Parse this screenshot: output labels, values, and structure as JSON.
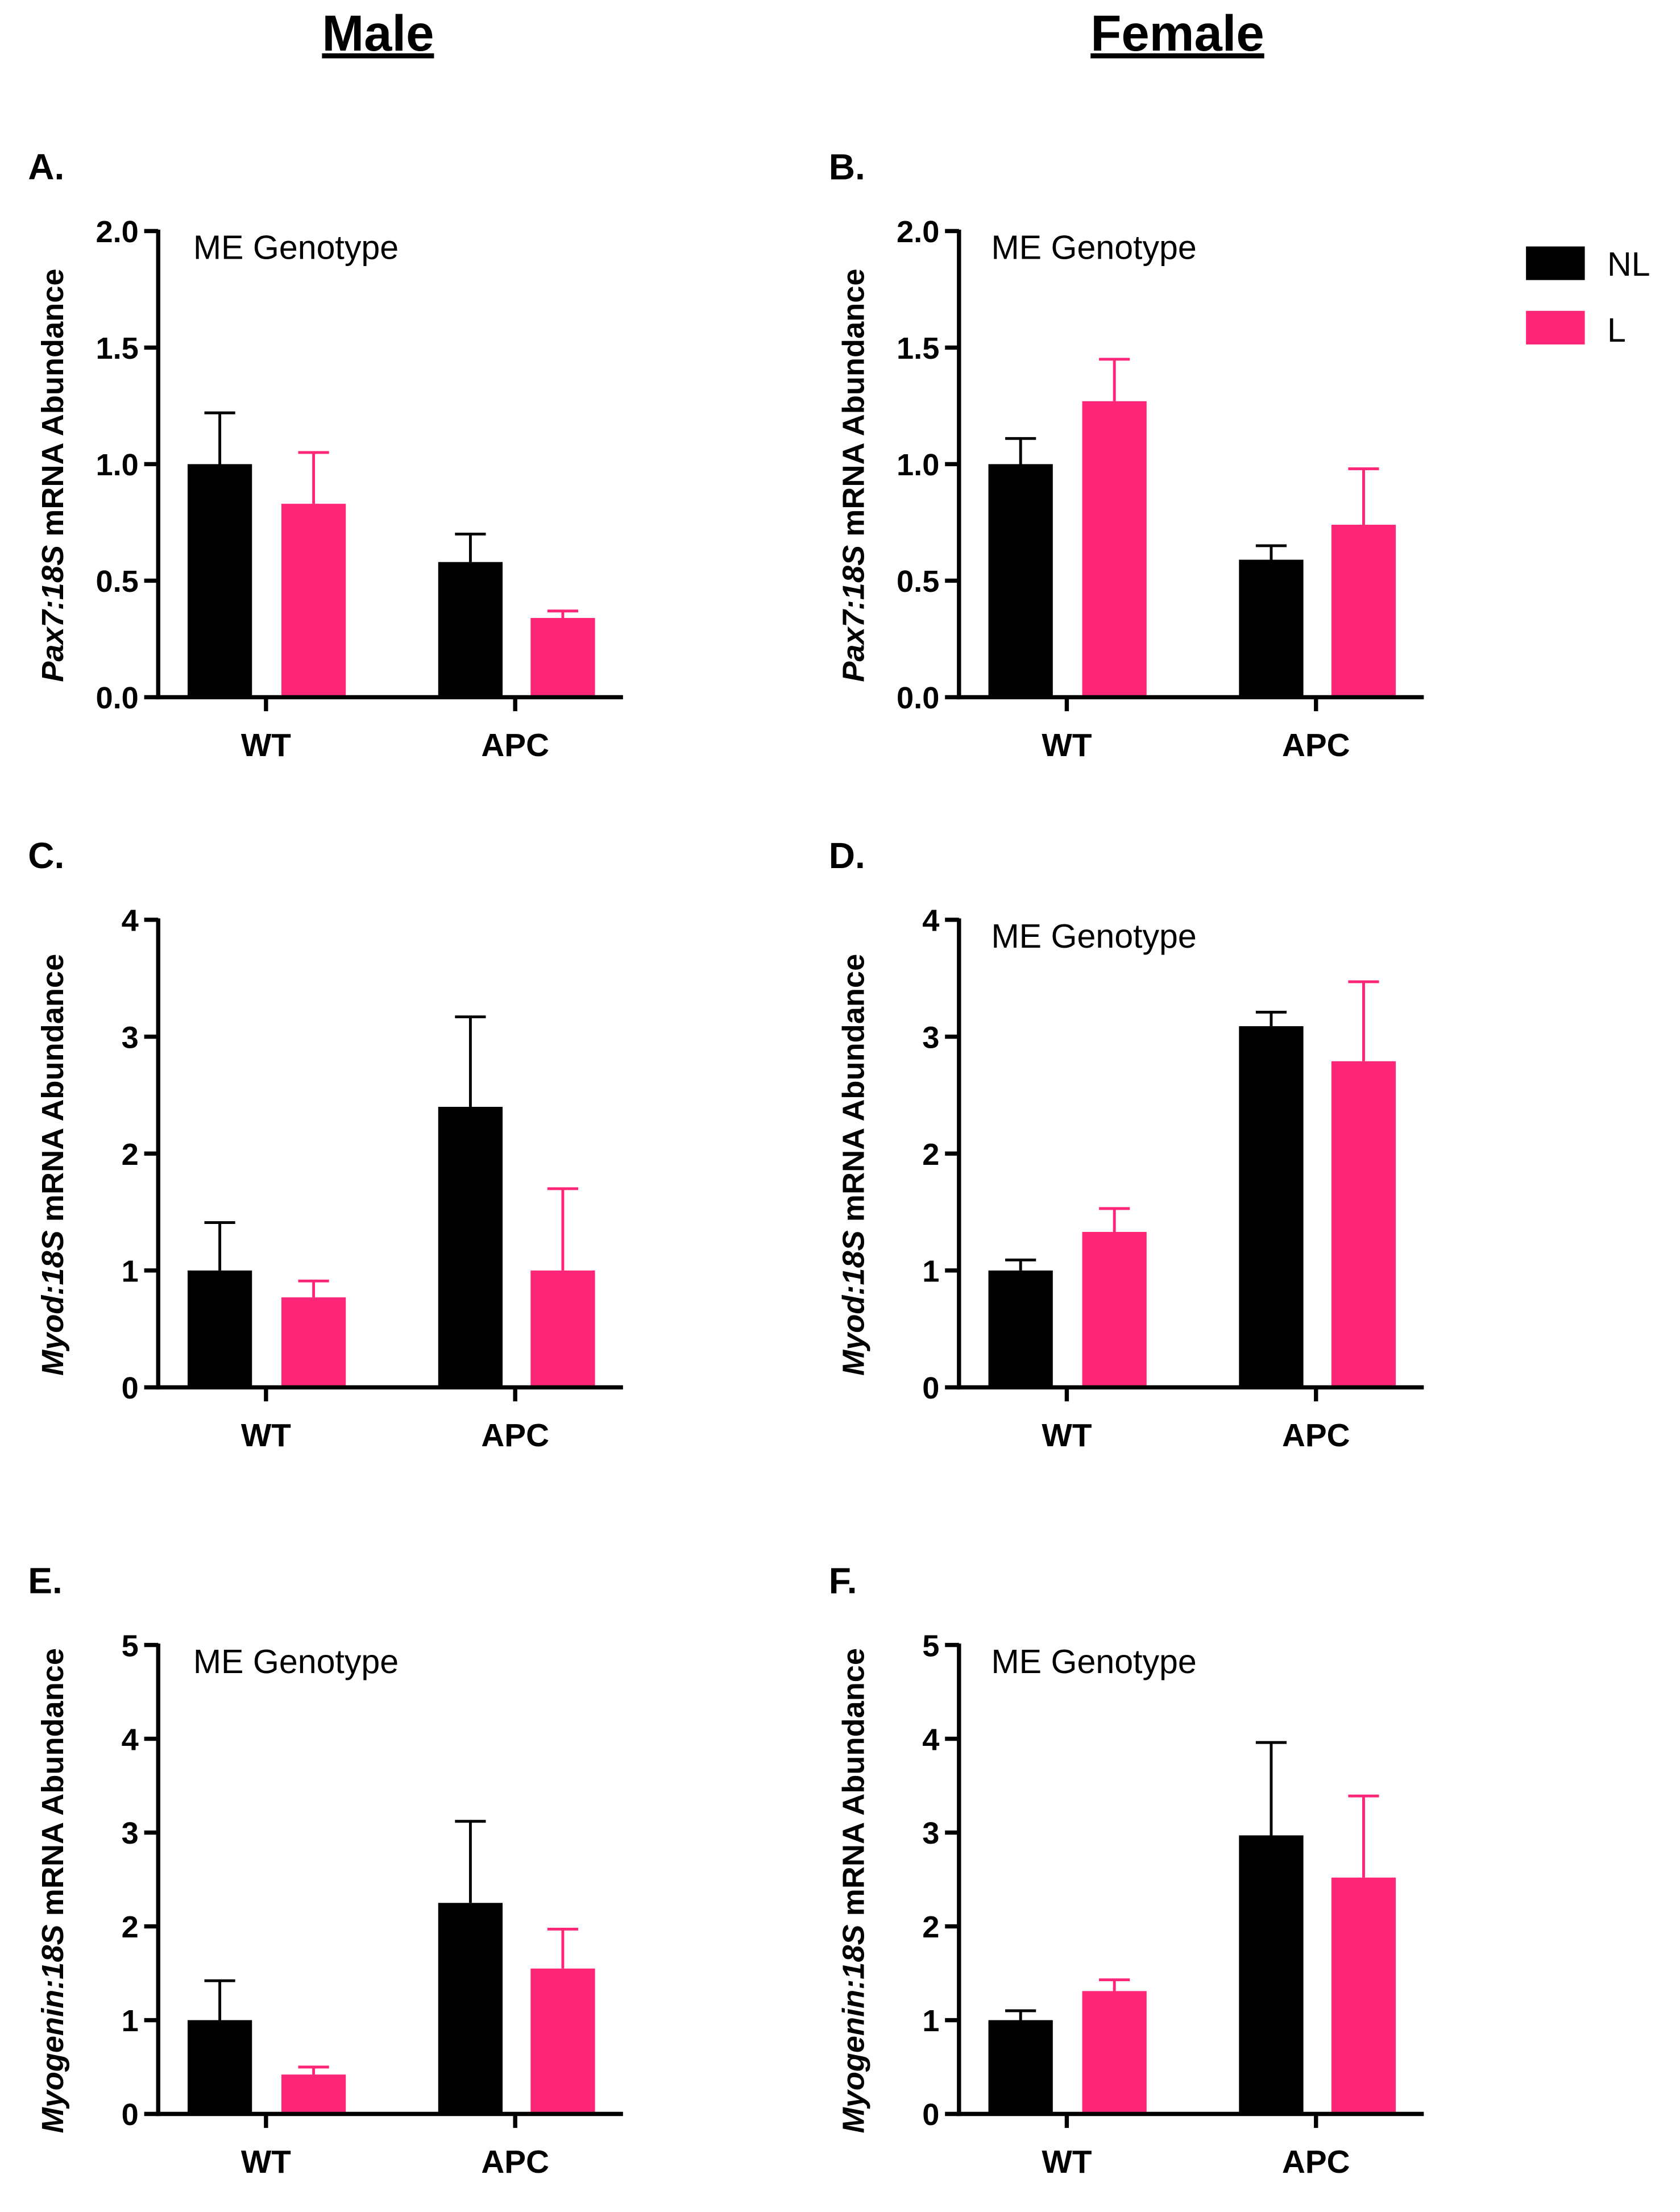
{
  "colors": {
    "NL": "#000000",
    "L": "#ff2678"
  },
  "column_titles": [
    "Male",
    "Female"
  ],
  "legend": [
    {
      "label": "NL",
      "color": "#000000"
    },
    {
      "label": "L",
      "color": "#ff2678"
    }
  ],
  "chart_data": [
    {
      "type": "bar",
      "panel": "A.",
      "column": "Male",
      "annotation": "ME Genotype",
      "ylabel_gene": "Pax7:18S",
      "ylabel_rest": " mRNA Abundance",
      "ylim": [
        0,
        2
      ],
      "yticks": [
        "0.0",
        "0.5",
        "1.0",
        "1.5",
        "2.0"
      ],
      "categories": [
        "WT",
        "APC"
      ],
      "series": [
        {
          "name": "NL",
          "values": [
            1.0,
            0.58
          ],
          "errors": [
            1.22,
            0.7
          ]
        },
        {
          "name": "L",
          "values": [
            0.83,
            0.34
          ],
          "errors": [
            1.05,
            0.37
          ]
        }
      ]
    },
    {
      "type": "bar",
      "panel": "B.",
      "column": "Female",
      "annotation": "ME Genotype",
      "ylabel_gene": "Pax7:18S",
      "ylabel_rest": " mRNA Abundance",
      "ylim": [
        0,
        2
      ],
      "yticks": [
        "0.0",
        "0.5",
        "1.0",
        "1.5",
        "2.0"
      ],
      "categories": [
        "WT",
        "APC"
      ],
      "series": [
        {
          "name": "NL",
          "values": [
            1.0,
            0.59
          ],
          "errors": [
            1.11,
            0.65
          ]
        },
        {
          "name": "L",
          "values": [
            1.27,
            0.74
          ],
          "errors": [
            1.45,
            0.98
          ]
        }
      ]
    },
    {
      "type": "bar",
      "panel": "C.",
      "column": "Male",
      "annotation": null,
      "ylabel_gene": "Myod:18S",
      "ylabel_rest": " mRNA Abundance",
      "ylim": [
        0,
        4
      ],
      "yticks": [
        "0",
        "1",
        "2",
        "3",
        "4"
      ],
      "categories": [
        "WT",
        "APC"
      ],
      "series": [
        {
          "name": "NL",
          "values": [
            1.0,
            2.4
          ],
          "errors": [
            1.41,
            3.17
          ]
        },
        {
          "name": "L",
          "values": [
            0.77,
            1.0
          ],
          "errors": [
            0.91,
            1.7
          ]
        }
      ]
    },
    {
      "type": "bar",
      "panel": "D.",
      "column": "Female",
      "annotation": "ME Genotype",
      "ylabel_gene": "Myod:18S",
      "ylabel_rest": " mRNA Abundance",
      "ylim": [
        0,
        4
      ],
      "yticks": [
        "0",
        "1",
        "2",
        "3",
        "4"
      ],
      "categories": [
        "WT",
        "APC"
      ],
      "series": [
        {
          "name": "NL",
          "values": [
            1.0,
            3.09
          ],
          "errors": [
            1.09,
            3.21
          ]
        },
        {
          "name": "L",
          "values": [
            1.33,
            2.79
          ],
          "errors": [
            1.53,
            3.47
          ]
        }
      ]
    },
    {
      "type": "bar",
      "panel": "E.",
      "column": "Male",
      "annotation": "ME Genotype",
      "ylabel_gene": "Myogenin:18S",
      "ylabel_rest": " mRNA Abundance",
      "ylim": [
        0,
        5
      ],
      "yticks": [
        "0",
        "1",
        "2",
        "3",
        "4",
        "5"
      ],
      "categories": [
        "WT",
        "APC"
      ],
      "series": [
        {
          "name": "NL",
          "values": [
            1.0,
            2.25
          ],
          "errors": [
            1.42,
            3.12
          ]
        },
        {
          "name": "L",
          "values": [
            0.42,
            1.55
          ],
          "errors": [
            0.5,
            1.97
          ]
        }
      ]
    },
    {
      "type": "bar",
      "panel": "F.",
      "column": "Female",
      "annotation": "ME Genotype",
      "ylabel_gene": "Myogenin:18S",
      "ylabel_rest": " mRNA Abundance",
      "ylim": [
        0,
        5
      ],
      "yticks": [
        "0",
        "1",
        "2",
        "3",
        "4",
        "5"
      ],
      "categories": [
        "WT",
        "APC"
      ],
      "series": [
        {
          "name": "NL",
          "values": [
            1.0,
            2.97
          ],
          "errors": [
            1.1,
            3.96
          ]
        },
        {
          "name": "L",
          "values": [
            1.31,
            2.52
          ],
          "errors": [
            1.43,
            3.39
          ]
        }
      ]
    }
  ]
}
